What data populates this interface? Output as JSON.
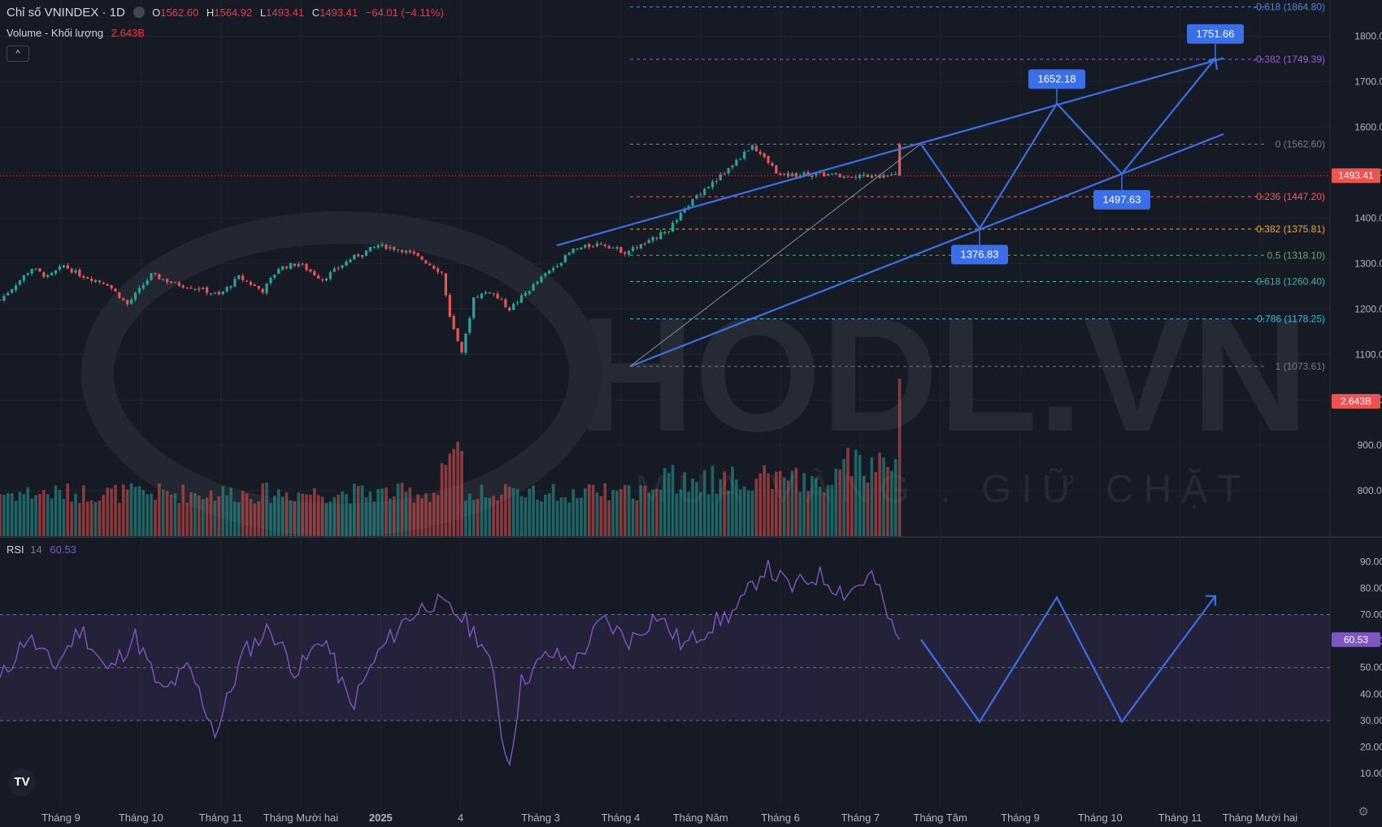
{
  "header": {
    "symbol_title": "Chỉ số VNINDEX · 1D",
    "o_label": "O",
    "o_value": "1562.60",
    "h_label": "H",
    "h_value": "1564.92",
    "l_label": "L",
    "l_value": "1493.41",
    "c_label": "C",
    "c_value": "1493.41",
    "change": "−64.01 (−4.11%)",
    "volume_label": "Volume - Khối lượng",
    "volume_value": "2.643B",
    "collapse_label": "^"
  },
  "rsi_legend": {
    "label": "RSI",
    "length": "14",
    "value": "60.53"
  },
  "watermark": {
    "brand": "HODL.VN",
    "slogan": "MUA VÀNG . GIỮ CHẶT"
  },
  "colors": {
    "bg": "#161a25",
    "up": "#26a69a",
    "down": "#ef5350",
    "projection": "#3b6fe8",
    "rsi": "#7e57c2"
  },
  "chart_data": [
    {
      "type": "candlestick",
      "title": "Chỉ số VNINDEX · 1D",
      "x_labels": [
        "Tháng 9",
        "Tháng 10",
        "Tháng 11",
        "Tháng Mười hai",
        "2025",
        "4",
        "Tháng 3",
        "Tháng 4",
        "Tháng Năm",
        "Tháng 6",
        "Tháng 7",
        "Tháng Tâm",
        "Tháng 9",
        "Tháng 10",
        "Tháng 11",
        "Tháng Mười hai"
      ],
      "y_ticks": [
        800,
        900,
        1000,
        1100,
        1200,
        1300,
        1400,
        1500,
        1600,
        1700,
        1800
      ],
      "ylim": [
        700,
        1880
      ],
      "last_price": 1493.41,
      "last_price_label": "1493.41",
      "price_path_x": [
        0,
        8,
        12,
        16,
        20,
        27,
        32,
        38,
        44,
        50,
        55,
        60,
        66,
        70,
        75,
        81,
        88,
        95,
        101,
        106,
        111,
        113,
        116,
        119,
        123,
        128,
        135,
        144,
        151,
        157,
        163,
        168,
        175,
        182,
        189,
        196,
        202,
        209,
        214,
        222,
        227,
        232
      ],
      "price_path_y": [
        1220,
        1290,
        1270,
        1295,
        1275,
        1255,
        1210,
        1275,
        1255,
        1245,
        1230,
        1270,
        1240,
        1290,
        1300,
        1265,
        1310,
        1340,
        1330,
        1310,
        1280,
        1180,
        1100,
        1225,
        1240,
        1200,
        1260,
        1330,
        1345,
        1325,
        1348,
        1375,
        1450,
        1500,
        1560,
        1493,
        1497,
        1495,
        1494,
        1493,
        1493,
        1493
      ],
      "volume_ylim": [
        0,
        3.0
      ],
      "volume_label": "2.643B",
      "fibonacci": [
        {
          "label": "-0.618 (1864.80)",
          "value": 1864.8,
          "color": "#5b7fd6"
        },
        {
          "label": "-0.382 (1749.39)",
          "value": 1749.39,
          "color": "#9c5bd4"
        },
        {
          "label": "0 (1562.60)",
          "value": 1562.6,
          "color": "#787b86"
        },
        {
          "label": "0.236 (1447.20)",
          "value": 1447.2,
          "color": "#f05b5b"
        },
        {
          "label": "0.382 (1375.81)",
          "value": 1375.81,
          "color": "#f5a623"
        },
        {
          "label": "0.5 (1318.10)",
          "value": 1318.1,
          "color": "#6da565"
        },
        {
          "label": "0.618 (1260.40)",
          "value": 1260.4,
          "color": "#3fb1a3"
        },
        {
          "label": "0.786 (1178.25)",
          "value": 1178.25,
          "color": "#3ab7d6"
        },
        {
          "label": "1 (1073.61)",
          "value": 1073.61,
          "color": "#787b86"
        }
      ],
      "channel_upper_start": 1340,
      "channel_upper_end": 1752,
      "channel_lower_start": 1073.61,
      "channel_lower_end": 1585,
      "projection_points": [
        {
          "value": 1562.6,
          "label": ""
        },
        {
          "value": 1376.83,
          "label": "1376.83"
        },
        {
          "value": 1652.18,
          "label": "1652.18"
        },
        {
          "value": 1497.63,
          "label": "1497.63"
        },
        {
          "value": 1751.66,
          "label": "1751.66"
        }
      ]
    },
    {
      "type": "line",
      "title": "RSI 14",
      "y_ticks": [
        10,
        20,
        30,
        40,
        50,
        60,
        70,
        80,
        90
      ],
      "ylim": [
        3,
        95
      ],
      "bands": [
        30,
        50,
        70
      ],
      "last_value": 60.53,
      "last_value_label": "60.53",
      "rsi_path_x": [
        0,
        6,
        12,
        18,
        24,
        30,
        36,
        42,
        48,
        54,
        60,
        66,
        72,
        78,
        84,
        90,
        96,
        102,
        107,
        110,
        112,
        113,
        116,
        122,
        128,
        134,
        140,
        146,
        152,
        158,
        164,
        170,
        176,
        182,
        188,
        194,
        199,
        200
      ],
      "rsi_path_y": [
        45,
        62,
        50,
        65,
        48,
        62,
        40,
        50,
        25,
        55,
        65,
        48,
        62,
        35,
        55,
        68,
        75,
        70,
        60,
        45,
        20,
        12,
        45,
        55,
        52,
        68,
        60,
        70,
        58,
        66,
        72,
        88,
        80,
        85,
        78,
        85,
        62,
        61
      ],
      "projection": [
        60.53,
        29.5,
        76.5,
        29.5,
        77
      ]
    }
  ]
}
